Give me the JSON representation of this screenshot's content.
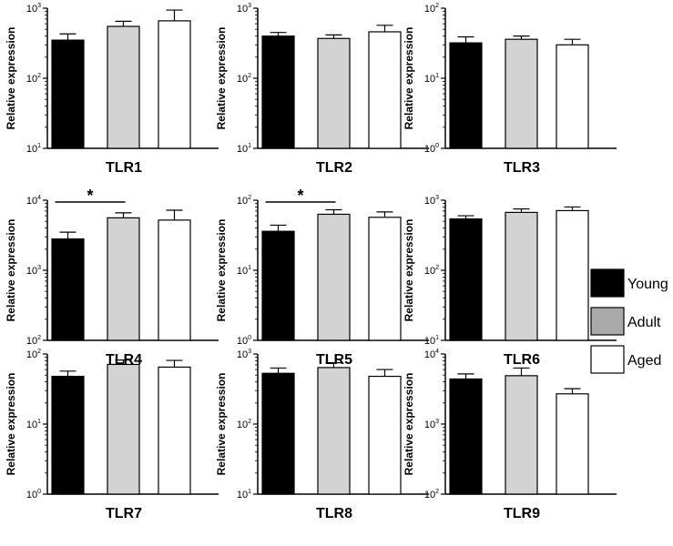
{
  "chart_data": [
    {
      "type": "bar",
      "title": "TLR1",
      "ylabel": "Relative expression",
      "yscale": "log",
      "ylim_exp": [
        1,
        3
      ],
      "categories": [
        "Young",
        "Adult",
        "Aged"
      ],
      "values": [
        350,
        550,
        660
      ],
      "errors": [
        80,
        100,
        280
      ]
    },
    {
      "type": "bar",
      "title": "TLR2",
      "ylabel": "Relative expression",
      "yscale": "log",
      "ylim_exp": [
        1,
        3
      ],
      "categories": [
        "Young",
        "Adult",
        "Aged"
      ],
      "values": [
        400,
        370,
        460
      ],
      "errors": [
        50,
        45,
        110
      ]
    },
    {
      "type": "bar",
      "title": "TLR3",
      "ylabel": "Relative expression",
      "yscale": "log",
      "ylim_exp": [
        0,
        2
      ],
      "categories": [
        "Young",
        "Adult",
        "Aged"
      ],
      "values": [
        32,
        36,
        30
      ],
      "errors": [
        7,
        4,
        6
      ]
    },
    {
      "type": "bar",
      "title": "TLR4",
      "ylabel": "Relative expression",
      "yscale": "log",
      "ylim_exp": [
        2,
        4
      ],
      "categories": [
        "Young",
        "Adult",
        "Aged"
      ],
      "values": [
        2800,
        5600,
        5200
      ],
      "errors": [
        700,
        1000,
        2000
      ],
      "significance": [
        {
          "from": 0,
          "to": 1,
          "label": "*"
        }
      ]
    },
    {
      "type": "bar",
      "title": "TLR5",
      "ylabel": "Relative expression",
      "yscale": "log",
      "ylim_exp": [
        0,
        2
      ],
      "categories": [
        "Young",
        "Adult",
        "Aged"
      ],
      "values": [
        36,
        63,
        57
      ],
      "errors": [
        8,
        10,
        11
      ],
      "significance": [
        {
          "from": 0,
          "to": 1,
          "label": "*"
        }
      ]
    },
    {
      "type": "bar",
      "title": "TLR6",
      "ylabel": "Relative expression",
      "yscale": "log",
      "ylim_exp": [
        1,
        3
      ],
      "categories": [
        "Young",
        "Adult",
        "Aged"
      ],
      "values": [
        540,
        670,
        710
      ],
      "errors": [
        60,
        80,
        90
      ]
    },
    {
      "type": "bar",
      "title": "TLR7",
      "ylabel": "Relative expression",
      "yscale": "log",
      "ylim_exp": [
        0,
        2
      ],
      "categories": [
        "Young",
        "Adult",
        "Aged"
      ],
      "values": [
        48,
        71,
        65
      ],
      "errors": [
        9,
        11,
        16
      ]
    },
    {
      "type": "bar",
      "title": "TLR8",
      "ylabel": "Relative expression",
      "yscale": "log",
      "ylim_exp": [
        1,
        3
      ],
      "categories": [
        "Young",
        "Adult",
        "Aged"
      ],
      "values": [
        530,
        640,
        480
      ],
      "errors": [
        100,
        110,
        120
      ]
    },
    {
      "type": "bar",
      "title": "TLR9",
      "ylabel": "Relative expression",
      "yscale": "log",
      "ylim_exp": [
        2,
        4
      ],
      "categories": [
        "Young",
        "Adult",
        "Aged"
      ],
      "values": [
        4400,
        4900,
        2700
      ],
      "errors": [
        800,
        1400,
        500
      ]
    }
  ],
  "legend": {
    "placement": "right",
    "items": [
      {
        "label": "Young",
        "color": "#000000"
      },
      {
        "label": "Adult",
        "color": "#a9a9a9"
      },
      {
        "label": "Aged",
        "color": "#ffffff"
      }
    ]
  },
  "bar_colors": [
    "#000000",
    "#d3d3d3",
    "#ffffff"
  ]
}
